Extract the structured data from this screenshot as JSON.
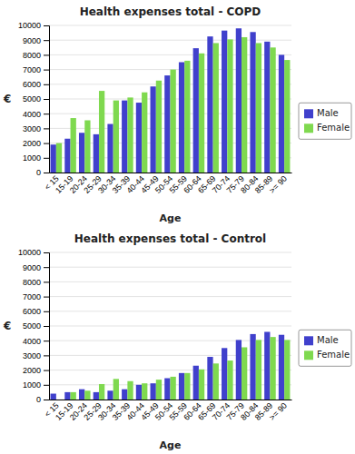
{
  "chart_data": [
    {
      "type": "bar",
      "title": "Health expenses total - COPD",
      "xlabel": "Age",
      "ylabel": "€",
      "categories": [
        "< 15",
        "15-19",
        "20-24",
        "25-29",
        "30-34",
        "35-39",
        "40-44",
        "45-49",
        "50-54",
        "55-59",
        "60-64",
        "65-69",
        "70-74",
        "75-79",
        "80-84",
        "85-89",
        ">= 90"
      ],
      "series": [
        {
          "name": "Male",
          "color": "#4040CC",
          "values": [
            1900,
            2300,
            2700,
            2600,
            3300,
            4900,
            4750,
            5850,
            6600,
            7500,
            8450,
            9250,
            9650,
            9800,
            9550,
            8900,
            8000
          ]
        },
        {
          "name": "Female",
          "color": "#7FD94F",
          "values": [
            2000,
            3700,
            3550,
            5550,
            4900,
            5100,
            5450,
            6250,
            7000,
            7600,
            8100,
            8800,
            9050,
            9200,
            8800,
            8500,
            7650
          ]
        }
      ],
      "ylim": [
        0,
        10000
      ],
      "yticks": [
        0,
        1000,
        2000,
        3000,
        4000,
        5000,
        6000,
        7000,
        8000,
        9000,
        10000
      ],
      "grid": true,
      "legend": "right"
    },
    {
      "type": "bar",
      "title": "Health expenses total - Control",
      "xlabel": "Age",
      "ylabel": "€",
      "categories": [
        "< 15",
        "15-19",
        "20-24",
        "25-29",
        "30-34",
        "35-39",
        "40-44",
        "45-49",
        "50-54",
        "55-59",
        "60-64",
        "65-69",
        "70-74",
        "75-79",
        "80-84",
        "85-89",
        ">= 90"
      ],
      "series": [
        {
          "name": "Male",
          "color": "#4040CC",
          "values": [
            400,
            500,
            700,
            500,
            600,
            700,
            1000,
            1100,
            1450,
            1800,
            2300,
            2900,
            3500,
            4050,
            4450,
            4600,
            4400
          ]
        },
        {
          "name": "Female",
          "color": "#7FD94F",
          "values": [
            0,
            500,
            600,
            1050,
            1400,
            1250,
            1100,
            1350,
            1550,
            1800,
            2050,
            2450,
            2650,
            3550,
            4050,
            4250,
            4050
          ]
        }
      ],
      "ylim": [
        0,
        10000
      ],
      "yticks": [
        0,
        1000,
        2000,
        3000,
        4000,
        5000,
        6000,
        7000,
        8000,
        9000,
        10000
      ],
      "grid": true,
      "legend": "right"
    }
  ]
}
